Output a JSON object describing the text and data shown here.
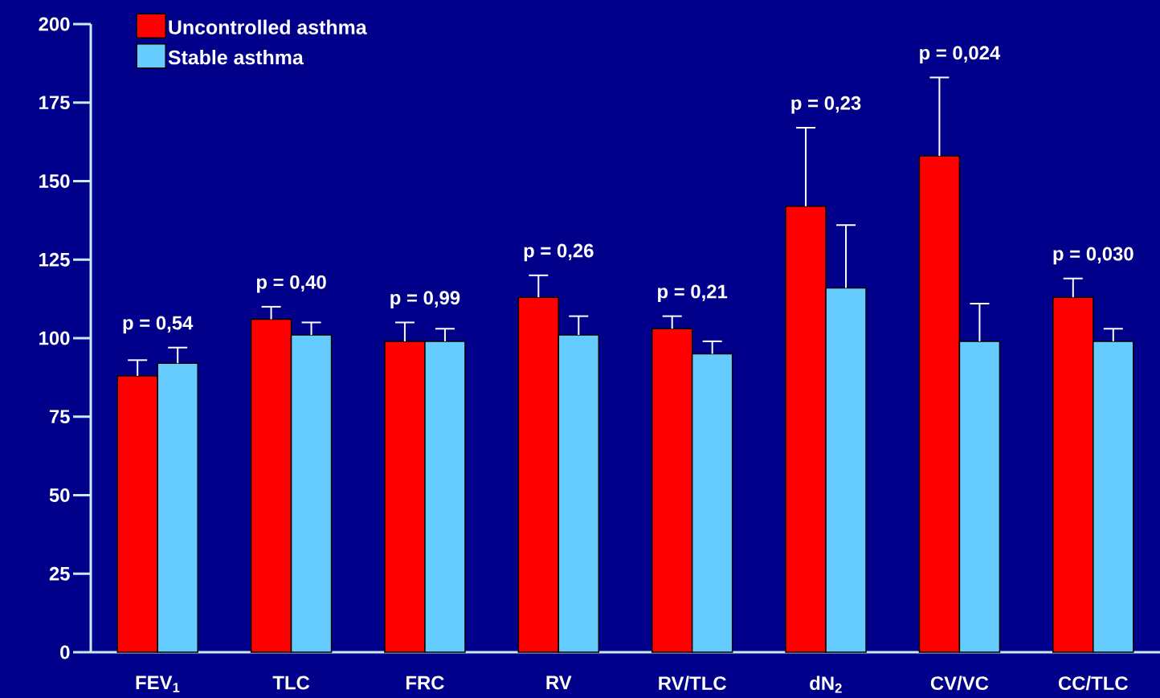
{
  "chart_data": {
    "type": "bar",
    "categories": [
      "FEV$_{1}$",
      "TLC",
      "FRC",
      "RV",
      "RV/TLC",
      "dN$_{2}$",
      "CV/VC",
      "CC/TLC"
    ],
    "series": [
      {
        "name": "Uncontrolled asthma",
        "color": "#ff0000",
        "values": [
          88,
          106,
          99,
          113,
          103,
          142,
          158,
          113
        ],
        "errors": [
          [
            88,
            93
          ],
          [
            106,
            110
          ],
          [
            99,
            105
          ],
          [
            113,
            120
          ],
          [
            103,
            107
          ],
          [
            142,
            167
          ],
          [
            158,
            183
          ],
          [
            113,
            119
          ]
        ]
      },
      {
        "name": "Stable asthma",
        "color": "#66ccff",
        "values": [
          92,
          101,
          99,
          101,
          95,
          116,
          99,
          99
        ],
        "errors": [
          [
            92,
            97
          ],
          [
            101,
            105
          ],
          [
            99,
            103
          ],
          [
            101,
            107
          ],
          [
            95,
            99
          ],
          [
            116,
            136
          ],
          [
            99,
            111
          ],
          [
            99,
            103
          ]
        ]
      }
    ],
    "ylim": [
      0,
      200
    ],
    "yticks": [
      0,
      25,
      50,
      75,
      100,
      125,
      150,
      175,
      200
    ],
    "legend": "top left",
    "grid": false,
    "annotations": [
      "p = 0,54",
      "p = 0,40",
      "p = 0,99",
      "p = 0,26",
      "p = 0,21",
      "p = 0,23",
      "p = 0,024",
      "p = 0,030"
    ]
  }
}
